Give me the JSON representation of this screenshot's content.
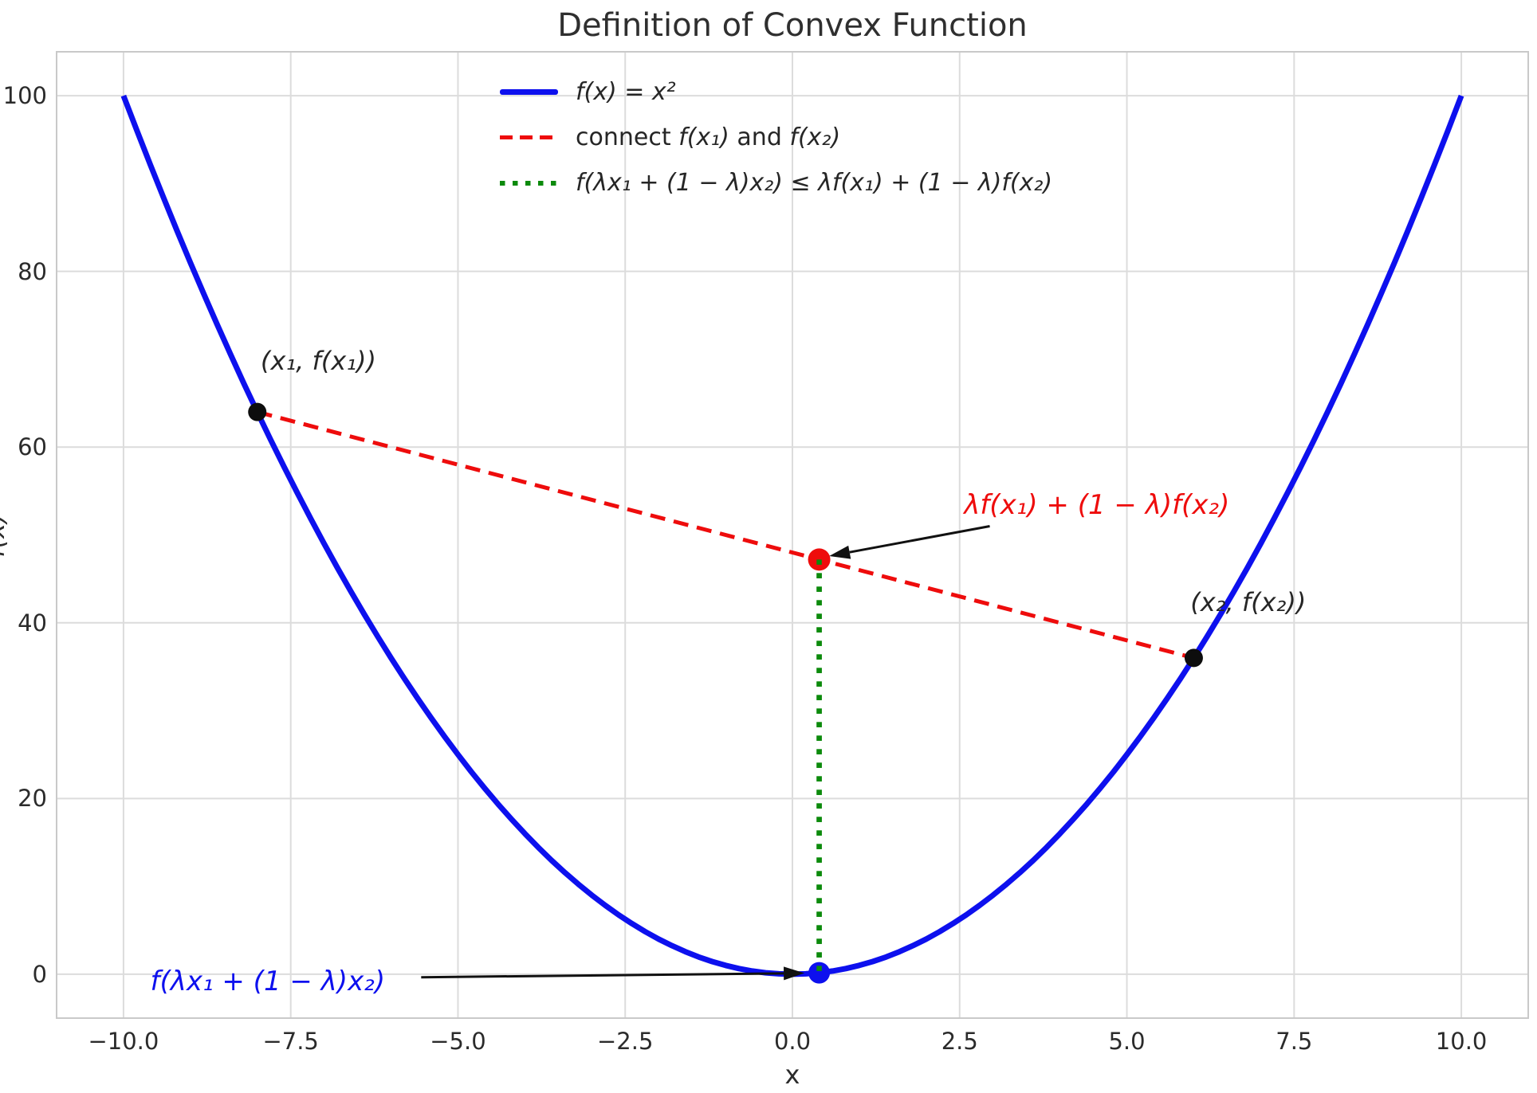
{
  "title": "Definition of Convex Function",
  "colors": {
    "curve": "#0d10ee",
    "chord": "#ee0c0c",
    "inequality": "#0c8a0c",
    "point": "#0d0d0d",
    "text": "#262626",
    "grid": "#dcdcdc",
    "spine": "#c9c9c9",
    "arrow": "#111111",
    "background": "#ffffff"
  },
  "chart_data": {
    "type": "line",
    "title": "Definition of Convex Function",
    "xlabel": "x",
    "ylabel": "f(x)",
    "xlim": [
      -11,
      11
    ],
    "ylim": [
      -5,
      105
    ],
    "grid": true,
    "legend_position": "upper left inside plot",
    "x_ticks": [
      {
        "label": "−10.0",
        "value": -10
      },
      {
        "label": "−7.5",
        "value": -7.5
      },
      {
        "label": "−5.0",
        "value": -5
      },
      {
        "label": "−2.5",
        "value": -2.5
      },
      {
        "label": "0.0",
        "value": 0
      },
      {
        "label": "2.5",
        "value": 2.5
      },
      {
        "label": "5.0",
        "value": 5
      },
      {
        "label": "7.5",
        "value": 7.5
      },
      {
        "label": "10.0",
        "value": 10
      }
    ],
    "y_ticks": [
      {
        "label": "0",
        "value": 0
      },
      {
        "label": "20",
        "value": 20
      },
      {
        "label": "40",
        "value": 40
      },
      {
        "label": "60",
        "value": 60
      },
      {
        "label": "80",
        "value": 80
      },
      {
        "label": "100",
        "value": 100
      }
    ],
    "series": [
      {
        "name": "f(x) = x²",
        "kind": "curve",
        "fn": "x^2",
        "x_range": [
          -10,
          10
        ],
        "style": "solid",
        "width": 7,
        "color_key": "curve",
        "points": [
          [
            -10,
            100
          ],
          [
            -9,
            81
          ],
          [
            -8,
            64
          ],
          [
            -7,
            49
          ],
          [
            -6,
            36
          ],
          [
            -5,
            25
          ],
          [
            -4,
            16
          ],
          [
            -3,
            9
          ],
          [
            -2,
            4
          ],
          [
            -1,
            1
          ],
          [
            0,
            0
          ],
          [
            1,
            1
          ],
          [
            2,
            4
          ],
          [
            3,
            9
          ],
          [
            4,
            16
          ],
          [
            5,
            25
          ],
          [
            6,
            36
          ],
          [
            7,
            49
          ],
          [
            8,
            64
          ],
          [
            9,
            81
          ],
          [
            10,
            100
          ]
        ]
      },
      {
        "name": "connect f(x₁) and f(x₂)",
        "kind": "segment",
        "style": "dashed",
        "width": 5,
        "color_key": "chord",
        "points": [
          [
            -8,
            64
          ],
          [
            6,
            36
          ]
        ]
      },
      {
        "name": "f(λx₁ + (1 − λ)x₂) ≤ λf(x₁) + (1 − λ)f(x₂)",
        "kind": "segment",
        "style": "dotted",
        "width": 6.5,
        "color_key": "inequality",
        "points": [
          [
            0.4,
            47.2
          ],
          [
            0.4,
            0.16
          ]
        ]
      }
    ],
    "markers": [
      {
        "name": "point-x1",
        "xy": [
          -8,
          64
        ],
        "r": 11.5,
        "color_key": "point"
      },
      {
        "name": "point-x2",
        "xy": [
          6,
          36
        ],
        "r": 11.5,
        "color_key": "point"
      },
      {
        "name": "point-chord-combination",
        "xy": [
          0.4,
          47.2
        ],
        "r": 14,
        "color_key": "chord"
      },
      {
        "name": "point-function-value",
        "xy": [
          0.4,
          0.16
        ],
        "r": 13.5,
        "color_key": "curve"
      }
    ],
    "annotations": [
      {
        "name": "label-x1",
        "kind": "point-label",
        "text": "(x₁, f(x₁))",
        "xy": [
          -7.95,
          69.8
        ],
        "anchor": "left",
        "color_key": "text"
      },
      {
        "name": "label-x2",
        "kind": "point-label",
        "text": "(x₂, f(x₂))",
        "xy": [
          5.95,
          42.3
        ],
        "anchor": "left",
        "color_key": "text"
      },
      {
        "name": "label-chord-value",
        "kind": "value-label",
        "text": "λf(x₁) + (1 − λ)f(x₂)",
        "xy": [
          4.55,
          53.4
        ],
        "anchor": "center",
        "color_key": "chord",
        "arrow": {
          "from": [
            2.95,
            51.0
          ],
          "to": [
            0.55,
            47.6
          ]
        }
      },
      {
        "name": "label-function-value",
        "kind": "value-label",
        "text": "f(λx₁ + (1 − λ)x₂)",
        "xy": [
          -9.6,
          -0.8
        ],
        "anchor": "left",
        "color_key": "curve",
        "arrow": {
          "from": [
            -5.55,
            -0.35
          ],
          "to": [
            0.18,
            0.12
          ]
        }
      }
    ],
    "legend": {
      "entries": [
        {
          "style": "solid",
          "color_key": "curve",
          "label": "f(x) = x²",
          "segments": [
            [
              "f(x) = x²",
              true
            ]
          ]
        },
        {
          "style": "dashed",
          "color_key": "chord",
          "label": "connect f(x₁) and f(x₂)",
          "segments": [
            [
              "connect ",
              false
            ],
            [
              "f(x₁)",
              true
            ],
            [
              " and ",
              false
            ],
            [
              "f(x₂)",
              true
            ]
          ]
        },
        {
          "style": "dotted",
          "color_key": "inequality",
          "label": "f(λx₁ + (1 − λ)x₂) ≤ λf(x₁) + (1 − λ)f(x₂)",
          "segments": [
            [
              "f(λx₁ + (1 − λ)x₂) ≤ λf(x₁) + (1 − λ)f(x₂)",
              true
            ]
          ]
        }
      ]
    }
  }
}
